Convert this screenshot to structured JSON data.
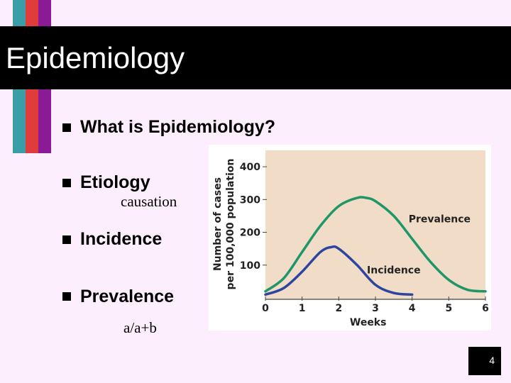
{
  "slide": {
    "title": "Epidemiology",
    "page_number": "4",
    "colors": {
      "background": "#fceefc",
      "teal": "#3a9ea6",
      "red": "#e03c3c",
      "purple": "#8b1a96",
      "title_bar": "#000000"
    }
  },
  "bullets": [
    {
      "text": "What is Epidemiology?"
    },
    {
      "text": "Etiology",
      "sub": "causation"
    },
    {
      "text": "Incidence"
    },
    {
      "text": "Prevalence",
      "sub": "a/a+b"
    }
  ],
  "chart_data": {
    "type": "line",
    "title": "",
    "xlabel": "Weeks",
    "ylabel": "Number of cases per 100,000 population",
    "xlim": [
      0,
      6
    ],
    "ylim": [
      0,
      450
    ],
    "xticks": [
      0,
      1,
      2,
      3,
      4,
      5,
      6
    ],
    "yticks": [
      100,
      200,
      300,
      400
    ],
    "grid": false,
    "background": "#f1dcc8",
    "series": [
      {
        "name": "Prevalence",
        "color": "#1e9668",
        "x": [
          0,
          0.5,
          1,
          1.5,
          2,
          2.5,
          2.75,
          3,
          3.5,
          4,
          4.5,
          5,
          5.5,
          6
        ],
        "y": [
          20,
          60,
          140,
          220,
          280,
          305,
          305,
          295,
          250,
          180,
          110,
          55,
          25,
          20
        ]
      },
      {
        "name": "Incidence",
        "color": "#2e45a0",
        "x": [
          0,
          0.5,
          1,
          1.5,
          1.8,
          2,
          2.5,
          3,
          3.5,
          4
        ],
        "y": [
          10,
          30,
          80,
          140,
          155,
          150,
          100,
          40,
          15,
          10
        ]
      }
    ],
    "annotations": [
      {
        "text": "Prevalence",
        "series": "Prevalence"
      },
      {
        "text": "Incidence",
        "series": "Incidence"
      }
    ]
  }
}
